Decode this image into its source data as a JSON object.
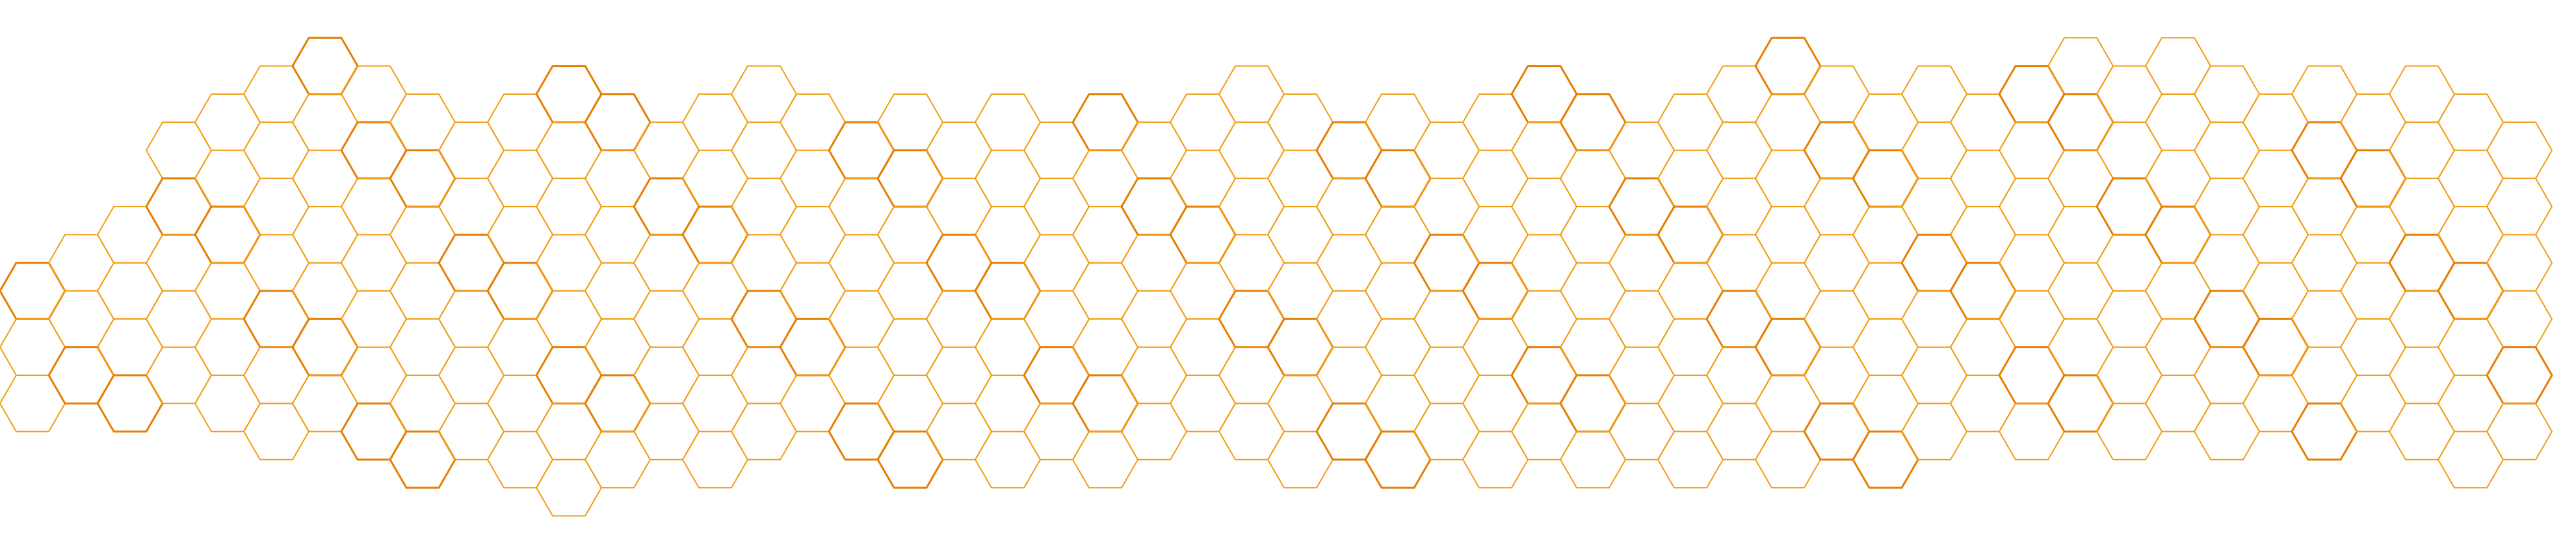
{
  "pattern": {
    "kind": "honeycomb",
    "shape": "hexagon",
    "fill": "none",
    "colors": {
      "background": "#ffffff",
      "stroke": "#F39C12",
      "stroke_strong": "#E67E00"
    }
  }
}
